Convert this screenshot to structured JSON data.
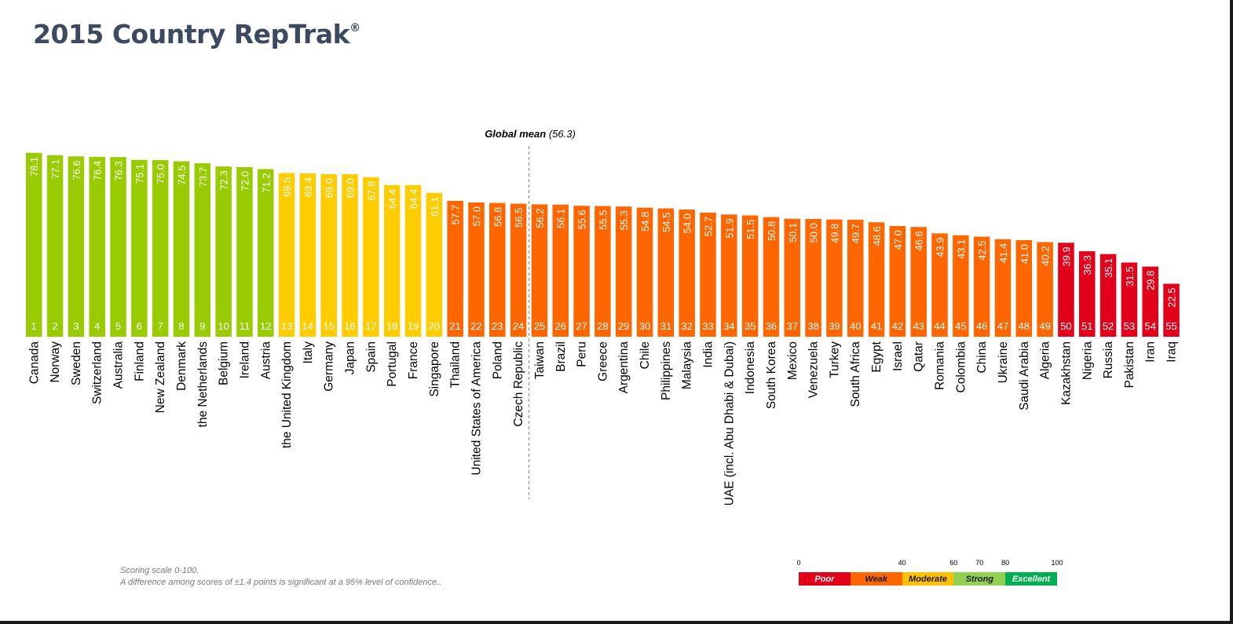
{
  "title": "2015 Country RepTrak",
  "title_mark": "®",
  "chart_data": {
    "type": "bar",
    "title": "2015 Country RepTrak",
    "categories": [
      "Canada",
      "Norway",
      "Sweden",
      "Switzerland",
      "Australia",
      "Finland",
      "New Zealand",
      "Denmark",
      "the Netherlands",
      "Belgium",
      "Ireland",
      "Austria",
      "the United Kingdom",
      "Italy",
      "Germany",
      "Japan",
      "Spain",
      "Portugal",
      "France",
      "Singapore",
      "Thailand",
      "United States of America",
      "Poland",
      "Czech Republic",
      "Taiwan",
      "Brazil",
      "Peru",
      "Greece",
      "Argentina",
      "Chile",
      "Philippines",
      "Malaysia",
      "India",
      "UAE (incl. Abu Dhabi & Dubai)",
      "Indonesia",
      "South Korea",
      "Mexico",
      "Venezuela",
      "Turkey",
      "South Africa",
      "Egypt",
      "Israel",
      "Qatar",
      "Romania",
      "Colombia",
      "China",
      "Ukraine",
      "Saudi Arabia",
      "Algeria",
      "Kazakhstan",
      "Nigeria",
      "Russia",
      "Pakistan",
      "Iran",
      "Iraq"
    ],
    "values": [
      78.1,
      77.1,
      76.6,
      76.4,
      76.3,
      75.1,
      75.0,
      74.5,
      73.7,
      72.3,
      72.0,
      71.2,
      69.5,
      69.4,
      69.0,
      69.0,
      67.8,
      64.4,
      64.4,
      61.1,
      57.7,
      57.0,
      56.8,
      56.5,
      56.2,
      56.1,
      55.6,
      55.5,
      55.3,
      54.8,
      54.5,
      54.0,
      52.7,
      51.9,
      51.5,
      50.8,
      50.1,
      50.0,
      49.8,
      49.7,
      48.6,
      47.0,
      46.6,
      43.9,
      43.1,
      42.5,
      41.4,
      41.0,
      40.2,
      39.9,
      36.3,
      35.1,
      31.5,
      29.8,
      22.5
    ],
    "value_labels": [
      "78.1",
      "77.1",
      "76.6",
      "76.4",
      "76.3",
      "75.1",
      "75.0",
      "74.5",
      "73.7",
      "72.3",
      "72.0",
      "71.2",
      "69.5",
      "69.4",
      "69.0",
      "69.0",
      "67.8",
      "64.4",
      "64.4",
      "61.1",
      "57.7",
      "57.0",
      "56.8",
      "56.5",
      "56.2",
      "56.1",
      "55.6",
      "55.5",
      "55.3",
      "54.8",
      "54.5",
      "54.0",
      "52.7",
      "51.9",
      "51.5",
      "50.8",
      "50.1",
      "50.0",
      "49.8",
      "49.7",
      "48.6",
      "47.0",
      "46.6",
      "43.9",
      "43.1",
      "42.5",
      "41.4",
      "41.0",
      "40.2",
      "39.9",
      "36.3",
      "35.1",
      "31.5",
      "29.8",
      "22.5"
    ],
    "ranks": [
      "1",
      "2",
      "3",
      "4",
      "5",
      "6",
      "7",
      "8",
      "9",
      "10",
      "11",
      "12",
      "13",
      "14",
      "15",
      "16",
      "17",
      "18",
      "19",
      "20",
      "21",
      "22",
      "23",
      "24",
      "25",
      "26",
      "27",
      "28",
      "29",
      "30",
      "31",
      "32",
      "33",
      "34",
      "35",
      "36",
      "37",
      "38",
      "39",
      "40",
      "41",
      "42",
      "43",
      "44",
      "45",
      "46",
      "47",
      "48",
      "49",
      "50",
      "51",
      "52",
      "53",
      "54",
      "55"
    ],
    "mean": 56.3,
    "mean_label_bold": "Global mean",
    "mean_label_value": "(56.3)",
    "ylim": [
      0,
      80
    ],
    "grid": false
  },
  "scale_legend": {
    "ticks": [
      "0",
      "40",
      "60",
      "70",
      "80",
      "100"
    ],
    "bands": [
      {
        "label": "Poor",
        "from": 0,
        "to": 40,
        "color": "#e2001a",
        "text_color": "#ffffff"
      },
      {
        "label": "Weak",
        "from": 40,
        "to": 60,
        "color": "#ff6600",
        "text_color": "#1a1a1a"
      },
      {
        "label": "Moderate",
        "from": 60,
        "to": 70,
        "color": "#ffc000",
        "text_color": "#1a1a1a"
      },
      {
        "label": "Strong",
        "from": 70,
        "to": 80,
        "color": "#92d050",
        "text_color": "#1a1a1a"
      },
      {
        "label": "Excellent",
        "from": 80,
        "to": 100,
        "color": "#00b050",
        "text_color": "#ffffff"
      }
    ]
  },
  "footnote": {
    "line1": "Scoring scale 0-100.",
    "line2": "A difference among scores of ±1.4 points is significant at a 95% level of confidence.."
  }
}
